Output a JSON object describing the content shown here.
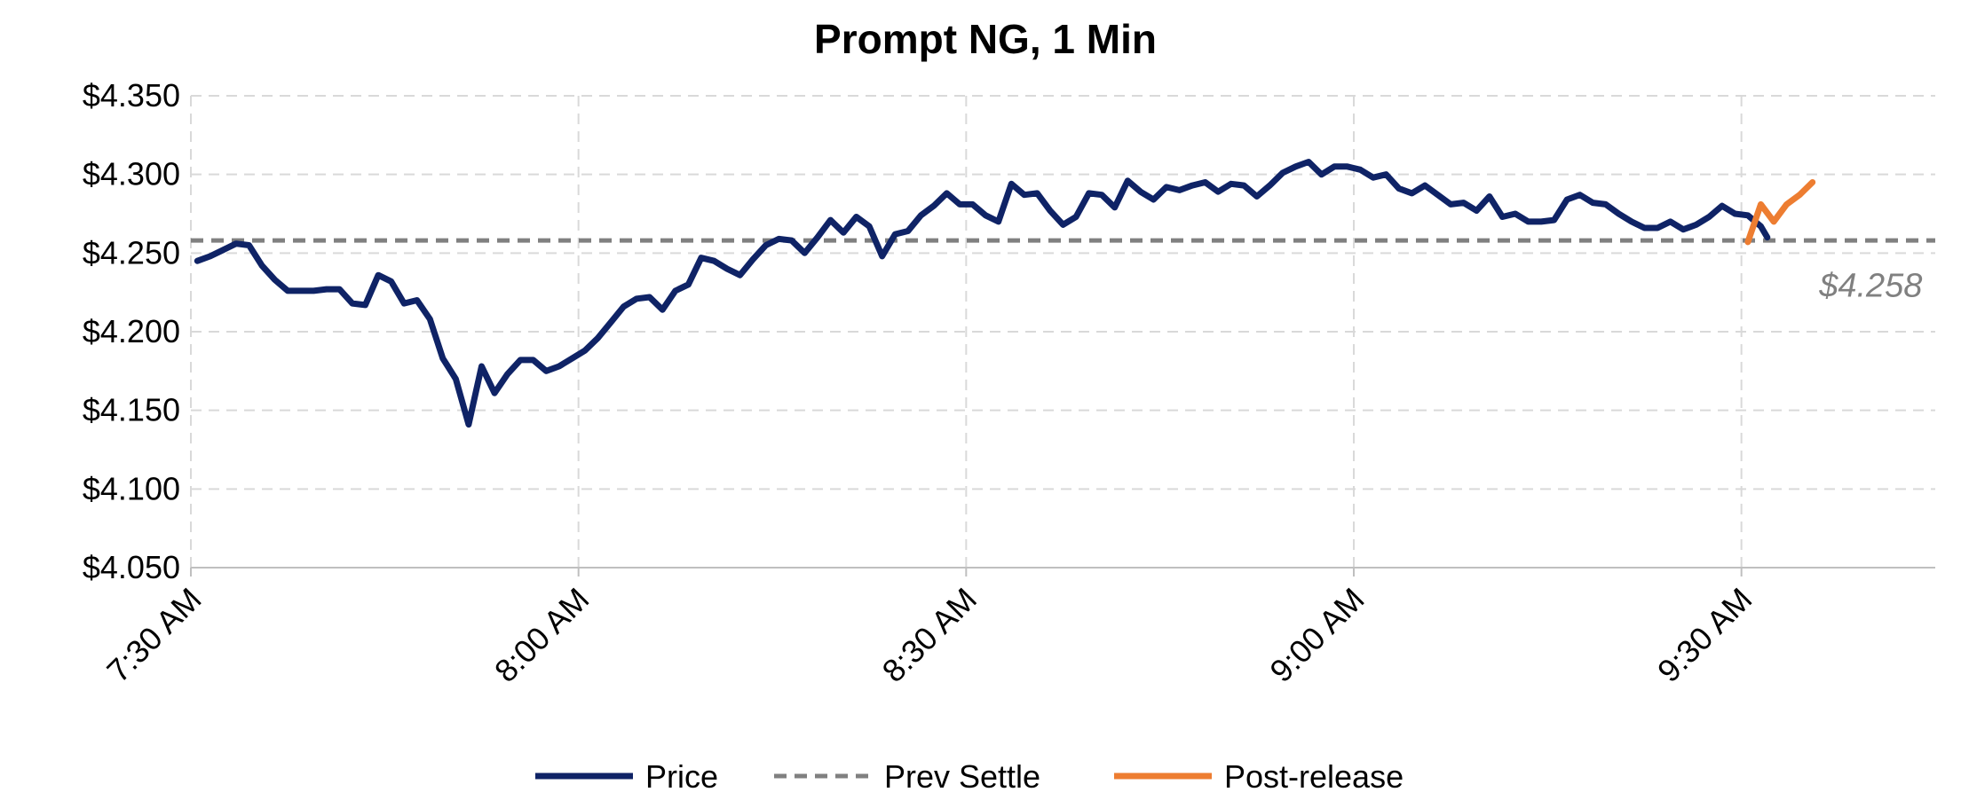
{
  "chart_data": {
    "type": "line",
    "title": "Prompt NG, 1 Min",
    "xlabel": "",
    "ylabel": "",
    "ylim": [
      4.05,
      4.35
    ],
    "xlim_minutes": [
      0,
      135
    ],
    "y_ticks": [
      4.05,
      4.1,
      4.15,
      4.2,
      4.25,
      4.3,
      4.35
    ],
    "y_tick_labels": [
      "$4.050",
      "$4.100",
      "$4.150",
      "$4.200",
      "$4.250",
      "$4.300",
      "$4.350"
    ],
    "x_ticks_minutes": [
      0,
      30,
      60,
      90,
      120
    ],
    "x_tick_labels": [
      "7:30 AM",
      "8:00 AM",
      "8:30 AM",
      "9:00 AM",
      "9:30 AM"
    ],
    "grid": true,
    "legend": {
      "position": "bottom",
      "entries": [
        {
          "label": "Price",
          "color": "#0f2366",
          "style": "solid"
        },
        {
          "label": "Prev Settle",
          "color": "#808080",
          "style": "dashed"
        },
        {
          "label": "Post-release",
          "color": "#ed7d31",
          "style": "solid"
        }
      ]
    },
    "annotations": [
      {
        "text": "$4.258",
        "x_minutes": 134,
        "y": 4.229
      }
    ],
    "series": [
      {
        "name": "Price",
        "color": "#0f2366",
        "points": [
          [
            0.5,
            4.245
          ],
          [
            1.5,
            4.248
          ],
          [
            2.5,
            4.252
          ],
          [
            3.5,
            4.256
          ],
          [
            4.5,
            4.255
          ],
          [
            5.5,
            4.242
          ],
          [
            6.5,
            4.233
          ],
          [
            7.5,
            4.226
          ],
          [
            8.5,
            4.226
          ],
          [
            9.5,
            4.226
          ],
          [
            10.5,
            4.227
          ],
          [
            11.5,
            4.227
          ],
          [
            12.5,
            4.218
          ],
          [
            13.5,
            4.217
          ],
          [
            14.5,
            4.236
          ],
          [
            15.5,
            4.232
          ],
          [
            16.5,
            4.218
          ],
          [
            17.5,
            4.22
          ],
          [
            18.5,
            4.208
          ],
          [
            19.5,
            4.183
          ],
          [
            20.5,
            4.17
          ],
          [
            21.5,
            4.141
          ],
          [
            22.5,
            4.178
          ],
          [
            23.5,
            4.161
          ],
          [
            24.5,
            4.173
          ],
          [
            25.5,
            4.182
          ],
          [
            26.5,
            4.182
          ],
          [
            27.5,
            4.175
          ],
          [
            28.5,
            4.178
          ],
          [
            29.5,
            4.183
          ],
          [
            30.5,
            4.188
          ],
          [
            31.5,
            4.196
          ],
          [
            32.5,
            4.206
          ],
          [
            33.5,
            4.216
          ],
          [
            34.5,
            4.221
          ],
          [
            35.5,
            4.222
          ],
          [
            36.5,
            4.214
          ],
          [
            37.5,
            4.226
          ],
          [
            38.5,
            4.23
          ],
          [
            39.5,
            4.247
          ],
          [
            40.5,
            4.245
          ],
          [
            41.5,
            4.24
          ],
          [
            42.5,
            4.236
          ],
          [
            43.5,
            4.246
          ],
          [
            44.5,
            4.255
          ],
          [
            45.5,
            4.259
          ],
          [
            46.5,
            4.258
          ],
          [
            47.5,
            4.25
          ],
          [
            48.5,
            4.26
          ],
          [
            49.5,
            4.271
          ],
          [
            50.5,
            4.263
          ],
          [
            51.5,
            4.273
          ],
          [
            52.5,
            4.267
          ],
          [
            53.5,
            4.248
          ],
          [
            54.5,
            4.262
          ],
          [
            55.5,
            4.264
          ],
          [
            56.5,
            4.274
          ],
          [
            57.5,
            4.28
          ],
          [
            58.5,
            4.288
          ],
          [
            59.5,
            4.281
          ],
          [
            60.5,
            4.281
          ],
          [
            61.5,
            4.274
          ],
          [
            62.5,
            4.27
          ],
          [
            63.5,
            4.294
          ],
          [
            64.5,
            4.287
          ],
          [
            65.5,
            4.288
          ],
          [
            66.5,
            4.277
          ],
          [
            67.5,
            4.268
          ],
          [
            68.5,
            4.273
          ],
          [
            69.5,
            4.288
          ],
          [
            70.5,
            4.287
          ],
          [
            71.5,
            4.279
          ],
          [
            72.5,
            4.296
          ],
          [
            73.5,
            4.289
          ],
          [
            74.5,
            4.284
          ],
          [
            75.5,
            4.292
          ],
          [
            76.5,
            4.29
          ],
          [
            77.5,
            4.293
          ],
          [
            78.5,
            4.295
          ],
          [
            79.5,
            4.289
          ],
          [
            80.5,
            4.294
          ],
          [
            81.5,
            4.293
          ],
          [
            82.5,
            4.286
          ],
          [
            83.5,
            4.293
          ],
          [
            84.5,
            4.301
          ],
          [
            85.5,
            4.305
          ],
          [
            86.5,
            4.308
          ],
          [
            87.5,
            4.3
          ],
          [
            88.5,
            4.305
          ],
          [
            89.5,
            4.305
          ],
          [
            90.5,
            4.303
          ],
          [
            91.5,
            4.298
          ],
          [
            92.5,
            4.3
          ],
          [
            93.5,
            4.291
          ],
          [
            94.5,
            4.288
          ],
          [
            95.5,
            4.293
          ],
          [
            96.5,
            4.287
          ],
          [
            97.5,
            4.281
          ],
          [
            98.5,
            4.282
          ],
          [
            99.5,
            4.277
          ],
          [
            100.5,
            4.286
          ],
          [
            101.5,
            4.273
          ],
          [
            102.5,
            4.275
          ],
          [
            103.5,
            4.27
          ],
          [
            104.5,
            4.27
          ],
          [
            105.5,
            4.271
          ],
          [
            106.5,
            4.284
          ],
          [
            107.5,
            4.287
          ],
          [
            108.5,
            4.282
          ],
          [
            109.5,
            4.281
          ],
          [
            110.5,
            4.275
          ],
          [
            111.5,
            4.27
          ],
          [
            112.5,
            4.266
          ],
          [
            113.5,
            4.266
          ],
          [
            114.5,
            4.27
          ],
          [
            115.5,
            4.265
          ],
          [
            116.5,
            4.268
          ],
          [
            117.5,
            4.273
          ],
          [
            118.5,
            4.28
          ],
          [
            119.5,
            4.275
          ],
          [
            120.5,
            4.274
          ],
          [
            121.5,
            4.267
          ],
          [
            122,
            4.26
          ]
        ]
      },
      {
        "name": "Prev Settle",
        "color": "#808080",
        "points": [
          [
            0,
            4.258
          ],
          [
            135,
            4.258
          ]
        ]
      },
      {
        "name": "Post-release",
        "color": "#ed7d31",
        "points": [
          [
            120.5,
            4.257
          ],
          [
            121.5,
            4.281
          ],
          [
            122.5,
            4.27
          ],
          [
            123.5,
            4.281
          ],
          [
            124.5,
            4.287
          ],
          [
            125.5,
            4.295
          ]
        ]
      }
    ]
  }
}
